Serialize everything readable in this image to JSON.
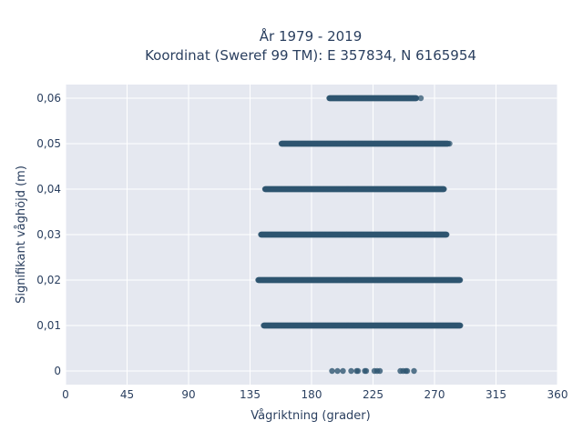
{
  "chart_data": {
    "type": "scatter",
    "title_line1": "År 1979 - 2019",
    "title_line2": "Koordinat (Sweref 99 TM): E 357834, N 6165954",
    "xlabel": "Vågriktning (grader)",
    "ylabel": "Signifikant våghöjd (m)",
    "xlim": [
      0,
      360
    ],
    "ylim": [
      -0.003,
      0.063
    ],
    "x_ticks": [
      0,
      45,
      90,
      135,
      180,
      225,
      270,
      315,
      360
    ],
    "x_tick_labels": [
      "0",
      "45",
      "90",
      "135",
      "180",
      "225",
      "270",
      "315",
      "360"
    ],
    "y_ticks": [
      0,
      0.01,
      0.02,
      0.03,
      0.04,
      0.05,
      0.06
    ],
    "y_tick_labels": [
      "0",
      "0,01",
      "0,02",
      "0,03",
      "0,04",
      "0,05",
      "0,06"
    ],
    "grid": true,
    "legend": "none",
    "series": [
      {
        "bands": [
          {
            "y": 0.06,
            "x_min": 193,
            "x_max": 257,
            "outliers": [
              260
            ]
          },
          {
            "y": 0.05,
            "x_min": 158,
            "x_max": 280,
            "outliers": [
              281
            ]
          },
          {
            "y": 0.04,
            "x_min": 146,
            "x_max": 277,
            "outliers": []
          },
          {
            "y": 0.03,
            "x_min": 143,
            "x_max": 279,
            "outliers": []
          },
          {
            "y": 0.02,
            "x_min": 141,
            "x_max": 289,
            "outliers": []
          },
          {
            "y": 0.01,
            "x_min": 145,
            "x_max": 289,
            "outliers": []
          },
          {
            "y": 0.0,
            "x_min": 195,
            "x_max": 255,
            "points": [
              195,
              199,
              203,
              209,
              213,
              214,
              219,
              220,
              226,
              228,
              230,
              245,
              247,
              249,
              250,
              255
            ]
          }
        ]
      }
    ]
  },
  "colors": {
    "marker": "#2e5570",
    "plot_bg": "#e5e8f0",
    "grid": "#ffffff",
    "text": "#2a3f5f"
  }
}
